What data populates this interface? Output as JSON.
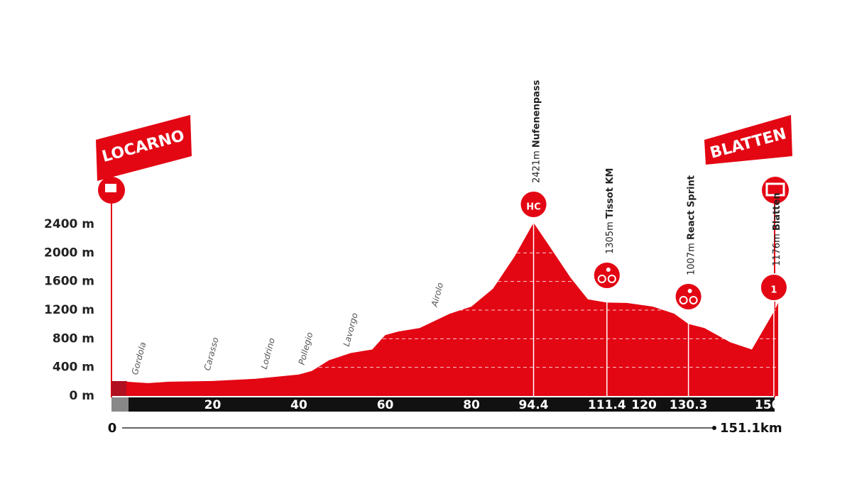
{
  "chart_data": {
    "type": "area",
    "color": "#e30613",
    "start_sign": "LOCARNO",
    "finish_sign": "BLATTEN",
    "x": [
      0,
      5,
      10,
      20,
      30,
      40,
      43,
      47,
      52,
      57,
      60,
      63,
      68,
      75,
      80,
      85,
      90,
      94.4,
      98,
      103,
      107,
      111.4,
      116,
      122,
      127,
      130.3,
      134,
      140,
      145,
      150.1,
      151.1
    ],
    "values": [
      200,
      180,
      200,
      210,
      240,
      300,
      350,
      500,
      600,
      650,
      850,
      900,
      950,
      1150,
      1250,
      1500,
      1950,
      2421,
      2100,
      1650,
      1350,
      1305,
      1300,
      1250,
      1150,
      1007,
      950,
      750,
      650,
      1176,
      1300
    ],
    "xlim": [
      0,
      151.1
    ],
    "end_label": "151.1km",
    "xticks": [
      20,
      40,
      60,
      80,
      94.4,
      111.4,
      120,
      130.3,
      150.1
    ],
    "ylim": [
      0,
      2400
    ],
    "yticks": [
      {
        "value": 2400,
        "label": "2400 m"
      },
      {
        "value": 2000,
        "label": "2000 m"
      },
      {
        "value": 1600,
        "label": "1600 m"
      },
      {
        "value": 1200,
        "label": "1200 m"
      },
      {
        "value": 800,
        "label": "800 m"
      },
      {
        "value": 400,
        "label": "400 m"
      },
      {
        "value": 0,
        "label": "0 m"
      }
    ],
    "grid": true,
    "places": [
      "Gordola",
      "Carasso",
      "Lodrino",
      "Pollegio",
      "Lavorgo",
      "Airolo"
    ],
    "climbs": [
      {
        "km": 94.4,
        "elevation": 2421,
        "elevation_label": "2421m",
        "name": "Nufenenpass",
        "icon": "HC"
      },
      {
        "km": 111.4,
        "elevation": 1305,
        "elevation_label": "1305m",
        "name": "Tissot KM"
      },
      {
        "km": 130.3,
        "elevation": 1007,
        "elevation_label": "1007m",
        "name": "React Sprint"
      },
      {
        "km": 150.1,
        "elevation": 1176,
        "elevation_label": "1176m",
        "name": "Blatten",
        "icon": "1"
      }
    ]
  }
}
